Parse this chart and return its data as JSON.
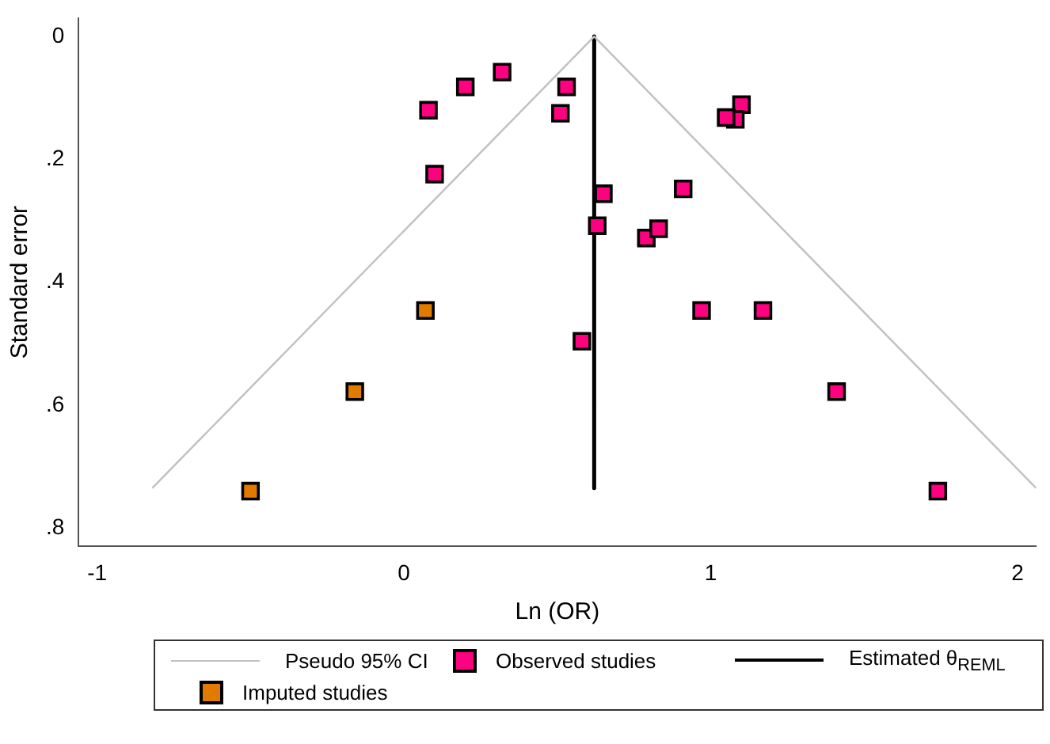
{
  "chart_data": {
    "type": "scatter",
    "xlabel": "Ln (OR)",
    "ylabel": "Standard error",
    "xlim": [
      -1.06,
      2.06
    ],
    "xticks": [
      -1,
      0,
      1,
      2
    ],
    "ylim": [
      0.83,
      -0.03
    ],
    "yticks": [
      0,
      {
        "value": 0.2,
        "label": ".2"
      },
      {
        "value": 0.4,
        "label": ".4"
      },
      {
        "value": 0.6,
        "label": ".6"
      },
      {
        "value": 0.8,
        "label": ".8"
      }
    ],
    "grid": false,
    "legend": "bottom",
    "marker": "square",
    "series": [
      {
        "name": "Pseudo 95% CI",
        "type": "line",
        "marker": "none",
        "color": "#c0c0c0",
        "x": [
          -0.82,
          0.62,
          2.06
        ],
        "values": [
          0.735,
          0,
          0.735
        ]
      },
      {
        "name": "Observed studies",
        "color": "#ff0080",
        "x": [
          0.08,
          0.2,
          0.32,
          0.53,
          0.51,
          0.1,
          0.65,
          0.63,
          0.91,
          0.79,
          0.83,
          0.97,
          1.17,
          1.1,
          1.08,
          1.05,
          0.58,
          1.41,
          1.74
        ],
        "values": [
          0.12,
          0.082,
          0.058,
          0.082,
          0.125,
          0.224,
          0.256,
          0.308,
          0.248,
          0.328,
          0.313,
          0.446,
          0.446,
          0.111,
          0.135,
          0.132,
          0.496,
          0.578,
          0.74
        ]
      },
      {
        "name": "Estimated θ$_{REML}$",
        "type": "line",
        "marker": "none",
        "color": "#000000",
        "x": [
          0.62,
          0.62
        ],
        "values": [
          0,
          0.735
        ]
      },
      {
        "name": "Imputed studies",
        "color": "#e07b00",
        "x": [
          0.07,
          -0.16,
          -0.5
        ],
        "values": [
          0.446,
          0.578,
          0.74
        ]
      }
    ]
  }
}
